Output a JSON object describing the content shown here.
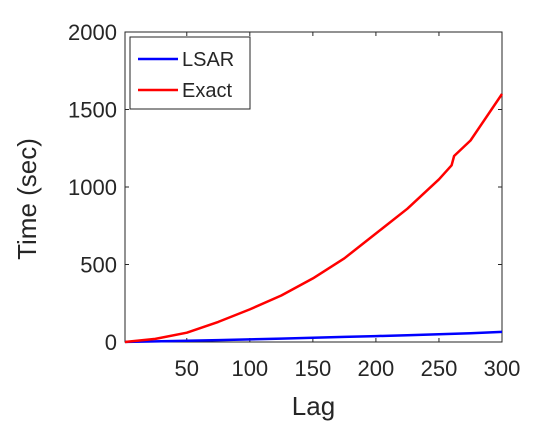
{
  "chart_data": {
    "type": "line",
    "title": "",
    "xlabel": "Lag",
    "ylabel": "Time (sec)",
    "xlim": [
      1,
      300
    ],
    "ylim": [
      0,
      2000
    ],
    "xticks": [
      50,
      100,
      150,
      200,
      250,
      300
    ],
    "yticks": [
      0,
      500,
      1000,
      1500,
      2000
    ],
    "grid": false,
    "legend_position": "top-left",
    "series": [
      {
        "name": "LSAR",
        "color": "#0000ff",
        "x": [
          1,
          25,
          50,
          75,
          100,
          125,
          150,
          175,
          200,
          225,
          250,
          275,
          300
        ],
        "y": [
          0.5,
          4,
          8,
          12,
          17,
          22,
          27,
          33,
          38,
          44,
          50,
          57,
          65
        ]
      },
      {
        "name": "Exact",
        "color": "#ff0000",
        "x": [
          1,
          25,
          50,
          75,
          100,
          125,
          150,
          175,
          200,
          225,
          250,
          260,
          262,
          275,
          300
        ],
        "y": [
          0,
          20,
          60,
          130,
          210,
          300,
          410,
          540,
          700,
          860,
          1050,
          1140,
          1200,
          1300,
          1600
        ]
      }
    ]
  }
}
